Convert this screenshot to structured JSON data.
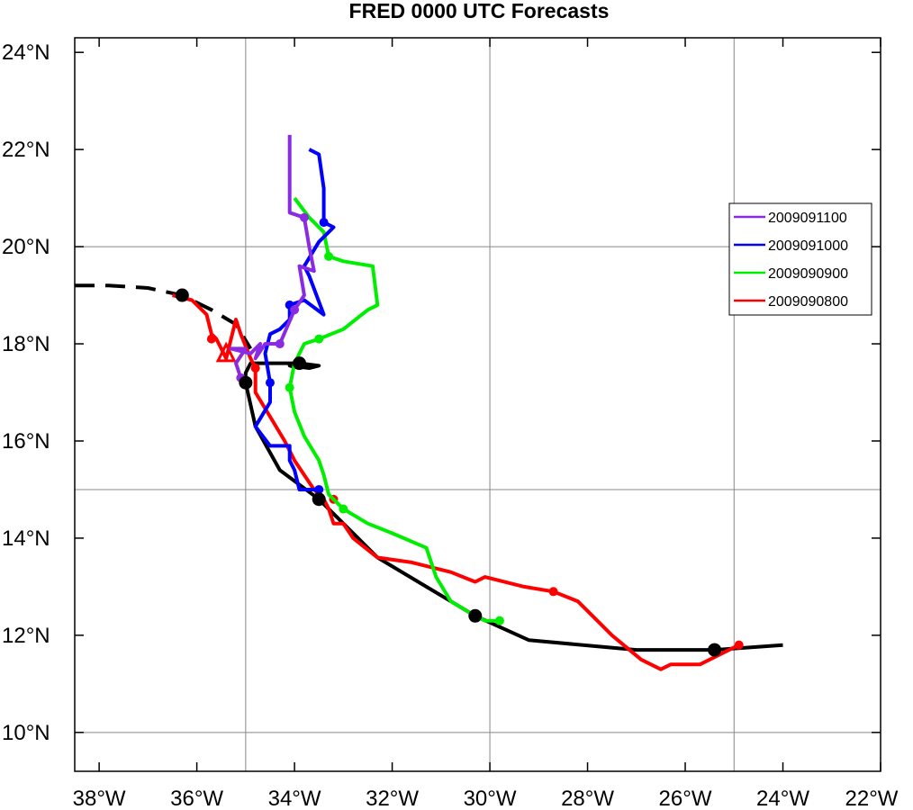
{
  "chart_data": {
    "type": "line",
    "title": "FRED 0000 UTC Forecasts",
    "xlabel": "",
    "ylabel": "",
    "xlim": [
      -38.5,
      -22
    ],
    "ylim": [
      9.2,
      24.3
    ],
    "x_ticks": [
      {
        "value": -38,
        "label": "38°W"
      },
      {
        "value": -36,
        "label": "36°W"
      },
      {
        "value": -34,
        "label": "34°W"
      },
      {
        "value": -32,
        "label": "32°W"
      },
      {
        "value": -30,
        "label": "30°W"
      },
      {
        "value": -28,
        "label": "28°W"
      },
      {
        "value": -26,
        "label": "26°W"
      },
      {
        "value": -24,
        "label": "24°W"
      },
      {
        "value": -22,
        "label": "22°W"
      }
    ],
    "y_ticks": [
      {
        "value": 10,
        "label": "10°N"
      },
      {
        "value": 12,
        "label": "12°N"
      },
      {
        "value": 14,
        "label": "14°N"
      },
      {
        "value": 16,
        "label": "16°N"
      },
      {
        "value": 18,
        "label": "18°N"
      },
      {
        "value": 20,
        "label": "20°N"
      },
      {
        "value": 22,
        "label": "22°N"
      },
      {
        "value": 24,
        "label": "24°N"
      }
    ],
    "gridlines": {
      "lon": [
        -35,
        -30,
        -25
      ],
      "lat": [
        10,
        15,
        20
      ]
    },
    "legend_position": "right",
    "best_track": {
      "color": "#000000",
      "points": [
        [
          -24.0,
          11.8
        ],
        [
          -25.4,
          11.7
        ],
        [
          -27.0,
          11.7
        ],
        [
          -29.2,
          11.9
        ],
        [
          -30.3,
          12.4
        ],
        [
          -31.3,
          13.0
        ],
        [
          -32.3,
          13.6
        ],
        [
          -33.5,
          14.8
        ],
        [
          -34.3,
          15.4
        ],
        [
          -34.8,
          16.3
        ],
        [
          -35.0,
          17.2
        ],
        [
          -35.0,
          17.4
        ],
        [
          -34.9,
          17.6
        ],
        [
          -34.3,
          17.6
        ],
        [
          -33.9,
          17.6
        ],
        [
          -33.5,
          17.55
        ],
        [
          -33.7,
          17.5
        ],
        [
          -34.1,
          17.55
        ],
        [
          -33.9,
          17.5
        ],
        [
          -33.95,
          17.6
        ]
      ],
      "markers": [
        [
          -25.4,
          11.7
        ],
        [
          -30.3,
          12.4
        ],
        [
          -33.5,
          14.8
        ],
        [
          -35.0,
          17.2
        ],
        [
          -33.9,
          17.6
        ]
      ],
      "history": [
        [
          -38.5,
          19.2
        ],
        [
          -37.8,
          19.2
        ],
        [
          -37.0,
          19.15
        ],
        [
          -36.3,
          19.0
        ],
        [
          -35.7,
          18.7
        ],
        [
          -35.2,
          18.4
        ],
        [
          -34.9,
          17.9
        ]
      ],
      "history_marker": [
        -36.3,
        19.0
      ]
    },
    "series": [
      {
        "name": "2009091100",
        "color": "#8a2be2",
        "points": [
          [
            -35.1,
            17.3
          ],
          [
            -35.2,
            17.6
          ],
          [
            -35.0,
            17.9
          ],
          [
            -35.3,
            17.9
          ],
          [
            -34.9,
            17.8
          ],
          [
            -34.7,
            18.0
          ],
          [
            -34.8,
            17.7
          ],
          [
            -34.6,
            18.0
          ],
          [
            -34.3,
            18.0
          ],
          [
            -34.0,
            18.7
          ],
          [
            -33.8,
            19.0
          ],
          [
            -33.9,
            19.6
          ],
          [
            -33.6,
            19.5
          ],
          [
            -33.7,
            20.0
          ],
          [
            -33.8,
            20.6
          ],
          [
            -34.1,
            20.7
          ],
          [
            -34.1,
            21.5
          ],
          [
            -34.1,
            22.3
          ]
        ],
        "markers": [
          [
            -35.1,
            17.3
          ],
          [
            -34.3,
            18.0
          ],
          [
            -34.0,
            18.7
          ],
          [
            -33.8,
            20.6
          ]
        ]
      },
      {
        "name": "2009091000",
        "color": "#0000ff",
        "points": [
          [
            -33.5,
            15.0
          ],
          [
            -33.9,
            15.0
          ],
          [
            -34.0,
            15.4
          ],
          [
            -34.1,
            15.6
          ],
          [
            -34.1,
            15.9
          ],
          [
            -34.5,
            15.9
          ],
          [
            -34.8,
            16.3
          ],
          [
            -34.5,
            16.8
          ],
          [
            -34.5,
            17.2
          ],
          [
            -34.6,
            17.8
          ],
          [
            -34.5,
            18.2
          ],
          [
            -34.3,
            18.3
          ],
          [
            -34.1,
            18.5
          ],
          [
            -34.1,
            18.8
          ],
          [
            -33.8,
            18.9
          ],
          [
            -33.4,
            18.6
          ],
          [
            -33.7,
            19.4
          ],
          [
            -33.8,
            19.6
          ],
          [
            -33.5,
            20.1
          ],
          [
            -33.2,
            20.4
          ],
          [
            -33.4,
            20.5
          ],
          [
            -33.4,
            21.2
          ],
          [
            -33.5,
            21.9
          ],
          [
            -33.7,
            22.0
          ]
        ],
        "markers": [
          [
            -33.5,
            15.0
          ],
          [
            -34.5,
            17.2
          ],
          [
            -34.1,
            18.8
          ],
          [
            -33.4,
            20.5
          ]
        ]
      },
      {
        "name": "2009090900",
        "color": "#00ee00",
        "points": [
          [
            -29.8,
            12.3
          ],
          [
            -30.1,
            12.3
          ],
          [
            -30.3,
            12.4
          ],
          [
            -30.8,
            12.7
          ],
          [
            -31.1,
            13.2
          ],
          [
            -31.3,
            13.8
          ],
          [
            -32.0,
            14.1
          ],
          [
            -32.5,
            14.3
          ],
          [
            -33.0,
            14.6
          ],
          [
            -33.3,
            14.9
          ],
          [
            -33.4,
            15.3
          ],
          [
            -33.5,
            15.6
          ],
          [
            -33.8,
            16.1
          ],
          [
            -34.0,
            16.6
          ],
          [
            -34.1,
            17.1
          ],
          [
            -34.0,
            17.6
          ],
          [
            -33.8,
            18.0
          ],
          [
            -33.5,
            18.1
          ],
          [
            -33.0,
            18.3
          ],
          [
            -32.5,
            18.7
          ],
          [
            -32.3,
            18.8
          ],
          [
            -32.4,
            19.6
          ],
          [
            -33.0,
            19.7
          ],
          [
            -33.3,
            19.8
          ],
          [
            -33.4,
            20.3
          ],
          [
            -33.7,
            20.6
          ],
          [
            -34.0,
            21.0
          ]
        ],
        "markers": [
          [
            -29.8,
            12.3
          ],
          [
            -33.0,
            14.6
          ],
          [
            -34.1,
            17.1
          ],
          [
            -33.5,
            18.1
          ],
          [
            -33.3,
            19.8
          ]
        ]
      },
      {
        "name": "2009090800",
        "color": "#ff0000",
        "points": [
          [
            -24.9,
            11.8
          ],
          [
            -25.1,
            11.7
          ],
          [
            -25.7,
            11.4
          ],
          [
            -26.3,
            11.4
          ],
          [
            -26.5,
            11.3
          ],
          [
            -26.9,
            11.5
          ],
          [
            -27.5,
            12.0
          ],
          [
            -28.2,
            12.7
          ],
          [
            -28.7,
            12.9
          ],
          [
            -29.3,
            13.0
          ],
          [
            -30.1,
            13.2
          ],
          [
            -30.3,
            13.1
          ],
          [
            -30.8,
            13.3
          ],
          [
            -31.6,
            13.5
          ],
          [
            -32.3,
            13.6
          ],
          [
            -32.8,
            14.0
          ],
          [
            -33.0,
            14.3
          ],
          [
            -33.2,
            14.3
          ],
          [
            -33.3,
            14.6
          ],
          [
            -33.4,
            14.8
          ],
          [
            -33.6,
            15.0
          ],
          [
            -34.0,
            15.6
          ],
          [
            -34.2,
            16.0
          ],
          [
            -34.5,
            16.5
          ],
          [
            -34.8,
            17.0
          ],
          [
            -34.8,
            17.5
          ],
          [
            -34.9,
            17.7
          ],
          [
            -35.1,
            18.2
          ],
          [
            -35.2,
            18.5
          ],
          [
            -35.4,
            17.7
          ],
          [
            -35.6,
            18.1
          ],
          [
            -35.7,
            18.2
          ],
          [
            -35.8,
            18.6
          ],
          [
            -36.1,
            18.9
          ],
          [
            -36.5,
            19.0
          ]
        ],
        "markers": [
          [
            -24.9,
            11.8
          ],
          [
            -28.7,
            12.9
          ],
          [
            -33.2,
            14.8
          ],
          [
            -34.8,
            17.5
          ],
          [
            -35.7,
            18.1
          ]
        ],
        "triangle": [
          -35.4,
          17.8
        ]
      }
    ]
  }
}
